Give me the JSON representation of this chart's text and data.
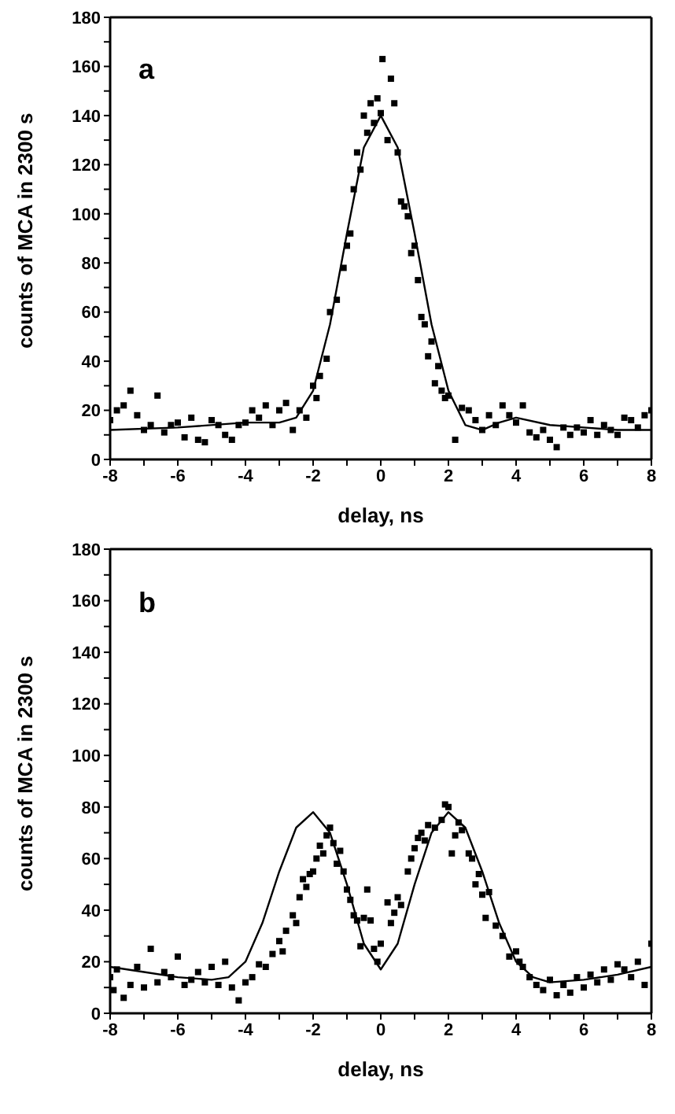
{
  "chart_data": [
    {
      "type": "scatter",
      "annotations": [
        "a"
      ],
      "xlabel": "delay, ns",
      "ylabel": "counts of MCA in 2300 s",
      "xlim": [
        -8,
        8
      ],
      "ylim": [
        0,
        180
      ],
      "xticks": [
        -8,
        -6,
        -4,
        -2,
        0,
        2,
        4,
        6,
        8
      ],
      "yticks": [
        0,
        20,
        40,
        60,
        80,
        100,
        120,
        140,
        160,
        180
      ],
      "series": [
        {
          "marker": "square",
          "color": "#000000",
          "x": [
            -8,
            -7.8,
            -7.6,
            -7.4,
            -7.2,
            -7,
            -6.8,
            -6.6,
            -6.4,
            -6.2,
            -6,
            -5.8,
            -5.6,
            -5.4,
            -5.2,
            -5,
            -4.8,
            -4.6,
            -4.4,
            -4.2,
            -4,
            -3.8,
            -3.6,
            -3.4,
            -3.2,
            -3,
            -2.8,
            -2.6,
            -2.4,
            -2.2,
            -2,
            -1.9,
            -1.8,
            -1.6,
            -1.5,
            -1.3,
            -1.1,
            -1,
            -0.9,
            -0.8,
            -0.7,
            -0.6,
            -0.5,
            -0.4,
            -0.3,
            -0.2,
            -0.1,
            0,
            0.05,
            0.2,
            0.3,
            0.4,
            0.5,
            0.6,
            0.7,
            0.8,
            0.9,
            1,
            1.1,
            1.2,
            1.3,
            1.4,
            1.5,
            1.6,
            1.7,
            1.8,
            1.9,
            2,
            2.2,
            2.4,
            2.6,
            2.8,
            3,
            3.2,
            3.4,
            3.6,
            3.8,
            4,
            4.2,
            4.4,
            4.6,
            4.8,
            5,
            5.2,
            5.4,
            5.6,
            5.8,
            6,
            6.2,
            6.4,
            6.6,
            6.8,
            7,
            7.2,
            7.4,
            7.6,
            7.8,
            8
          ],
          "values": [
            16,
            20,
            22,
            28,
            18,
            12,
            14,
            26,
            11,
            14,
            15,
            9,
            17,
            8,
            7,
            16,
            14,
            10,
            8,
            14,
            15,
            20,
            17,
            22,
            14,
            20,
            23,
            12,
            20,
            17,
            30,
            25,
            34,
            41,
            60,
            65,
            78,
            87,
            92,
            110,
            125,
            118,
            140,
            133,
            145,
            137,
            147,
            141,
            163,
            130,
            155,
            145,
            125,
            105,
            103,
            99,
            84,
            87,
            73,
            58,
            55,
            42,
            48,
            31,
            38,
            28,
            25,
            26,
            8,
            21,
            20,
            16,
            12,
            18,
            14,
            22,
            18,
            15,
            22,
            11,
            9,
            12,
            8,
            5,
            13,
            10,
            13,
            11,
            16,
            10,
            14,
            12,
            10,
            17,
            16,
            13,
            18,
            20
          ]
        },
        {
          "type": "line",
          "marker": "none",
          "color": "#000000",
          "x": [
            -8,
            -6,
            -4,
            -3,
            -2.5,
            -2,
            -1.5,
            -1,
            -0.5,
            0,
            0.5,
            1,
            1.5,
            2,
            2.5,
            3,
            3.5,
            4,
            5,
            6,
            7,
            8
          ],
          "values": [
            12,
            13,
            15,
            15,
            17,
            28,
            55,
            92,
            127,
            140,
            127,
            92,
            55,
            28,
            14,
            12,
            15,
            17,
            14,
            13,
            12,
            12
          ]
        }
      ]
    },
    {
      "type": "scatter",
      "annotations": [
        "b"
      ],
      "xlabel": "delay, ns",
      "ylabel": "counts of MCA in 2300 s",
      "xlim": [
        -8,
        8
      ],
      "ylim": [
        0,
        180
      ],
      "xticks": [
        -8,
        -6,
        -4,
        -2,
        0,
        2,
        4,
        6,
        8
      ],
      "yticks": [
        0,
        20,
        40,
        60,
        80,
        100,
        120,
        140,
        160,
        180
      ],
      "series": [
        {
          "marker": "square",
          "color": "#000000",
          "x": [
            -8,
            -7.9,
            -7.8,
            -7.6,
            -7.4,
            -7.2,
            -7,
            -6.8,
            -6.6,
            -6.4,
            -6.2,
            -6,
            -5.8,
            -5.6,
            -5.4,
            -5.2,
            -5,
            -4.8,
            -4.6,
            -4.4,
            -4.2,
            -4,
            -3.8,
            -3.6,
            -3.4,
            -3.2,
            -3,
            -2.9,
            -2.8,
            -2.6,
            -2.5,
            -2.4,
            -2.3,
            -2.2,
            -2.1,
            -2,
            -1.9,
            -1.8,
            -1.7,
            -1.6,
            -1.5,
            -1.4,
            -1.3,
            -1.2,
            -1.1,
            -1,
            -0.9,
            -0.8,
            -0.7,
            -0.6,
            -0.5,
            -0.4,
            -0.3,
            -0.2,
            -0.1,
            0,
            0.2,
            0.3,
            0.4,
            0.5,
            0.6,
            0.8,
            0.9,
            1,
            1.1,
            1.2,
            1.3,
            1.4,
            1.6,
            1.8,
            1.9,
            2,
            2.1,
            2.2,
            2.3,
            2.4,
            2.6,
            2.7,
            2.8,
            2.9,
            3,
            3.1,
            3.2,
            3.4,
            3.6,
            3.8,
            4,
            4.1,
            4.2,
            4.4,
            4.6,
            4.8,
            5,
            5.2,
            5.4,
            5.6,
            5.8,
            6,
            6.2,
            6.4,
            6.6,
            6.8,
            7,
            7.2,
            7.4,
            7.6,
            7.8,
            8
          ],
          "values": [
            14,
            9,
            17,
            6,
            11,
            18,
            10,
            25,
            12,
            16,
            14,
            22,
            11,
            13,
            16,
            12,
            18,
            11,
            20,
            10,
            5,
            12,
            14,
            19,
            18,
            23,
            28,
            24,
            32,
            38,
            35,
            45,
            52,
            49,
            54,
            55,
            60,
            65,
            62,
            69,
            72,
            66,
            58,
            63,
            55,
            48,
            44,
            38,
            36,
            26,
            37,
            48,
            36,
            25,
            20,
            27,
            43,
            35,
            39,
            45,
            42,
            55,
            60,
            64,
            68,
            70,
            67,
            73,
            72,
            75,
            81,
            80,
            62,
            69,
            74,
            71,
            62,
            60,
            50,
            54,
            46,
            37,
            47,
            34,
            30,
            22,
            24,
            20,
            18,
            14,
            11,
            9,
            13,
            7,
            11,
            8,
            14,
            10,
            15,
            12,
            17,
            13,
            19,
            17,
            14,
            20,
            11,
            27
          ]
        },
        {
          "type": "line",
          "marker": "none",
          "color": "#000000",
          "x": [
            -8,
            -7,
            -6,
            -5,
            -4.5,
            -4,
            -3.5,
            -3,
            -2.5,
            -2,
            -1.5,
            -1,
            -0.5,
            0,
            0.5,
            1,
            1.5,
            2,
            2.5,
            3,
            3.5,
            4,
            4.5,
            5,
            6,
            7,
            8
          ],
          "values": [
            18,
            16,
            14,
            13,
            14,
            20,
            35,
            55,
            72,
            78,
            70,
            50,
            27,
            17,
            27,
            50,
            70,
            78,
            72,
            55,
            35,
            20,
            14,
            12,
            13,
            15,
            18
          ]
        }
      ]
    }
  ]
}
